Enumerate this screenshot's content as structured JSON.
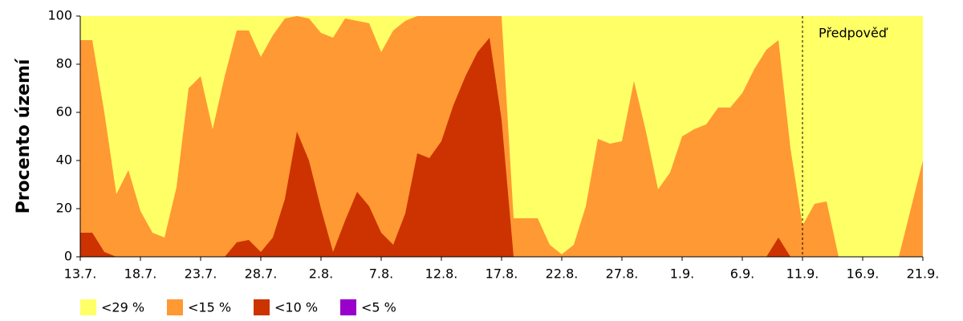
{
  "chart_data": {
    "type": "area",
    "y_label": "Procento území",
    "categories": [
      "13.7.",
      null,
      null,
      null,
      null,
      "18.7.",
      null,
      null,
      null,
      null,
      "23.7.",
      null,
      null,
      null,
      null,
      "28.7.",
      null,
      null,
      null,
      null,
      "2.8.",
      null,
      null,
      null,
      null,
      "7.8.",
      null,
      null,
      null,
      null,
      "12.8.",
      null,
      null,
      null,
      null,
      "17.8.",
      null,
      null,
      null,
      null,
      "22.8.",
      null,
      null,
      null,
      null,
      "27.8.",
      null,
      null,
      null,
      null,
      "1.9.",
      null,
      null,
      null,
      null,
      "6.9.",
      null,
      null,
      null,
      null,
      "11.9.",
      null,
      null,
      null,
      null,
      "16.9.",
      null,
      null,
      null,
      null,
      "21.9."
    ],
    "series": [
      {
        "name": "<29 %",
        "color": "#ffff66",
        "values": [
          100,
          100,
          100,
          100,
          100,
          100,
          100,
          100,
          100,
          100,
          100,
          100,
          100,
          100,
          100,
          100,
          100,
          100,
          100,
          100,
          100,
          100,
          100,
          100,
          100,
          100,
          100,
          100,
          100,
          100,
          100,
          100,
          100,
          100,
          100,
          100,
          100,
          100,
          100,
          100,
          100,
          100,
          100,
          100,
          100,
          100,
          100,
          100,
          100,
          100,
          100,
          100,
          100,
          100,
          100,
          100,
          100,
          100,
          100,
          100,
          100,
          100,
          100,
          100,
          100,
          100,
          100,
          100,
          100,
          100,
          100
        ]
      },
      {
        "name": "<15 %",
        "color": "#ff9933",
        "values": [
          90,
          90,
          60,
          26,
          36,
          19,
          10,
          8,
          29,
          70,
          75,
          53,
          75,
          94,
          94,
          83,
          92,
          99,
          100,
          99,
          93,
          91,
          99,
          98,
          97,
          85,
          94,
          98,
          100,
          100,
          100,
          100,
          100,
          100,
          100,
          100,
          16,
          16,
          16,
          5,
          1,
          5,
          21,
          49,
          47,
          48,
          73,
          52,
          28,
          35,
          50,
          53,
          55,
          62,
          62,
          68,
          78,
          86,
          90,
          45,
          13,
          22,
          23,
          0,
          0,
          0,
          0,
          0,
          0,
          20,
          40
        ]
      },
      {
        "name": "<10 %",
        "color": "#cc3300",
        "values": [
          10,
          10,
          2,
          0,
          0,
          0,
          0,
          0,
          0,
          0,
          0,
          0,
          0,
          6,
          7,
          2,
          8,
          24,
          52,
          40,
          20,
          2,
          15,
          27,
          21,
          10,
          5,
          18,
          43,
          41,
          48,
          63,
          75,
          85,
          91,
          57,
          0,
          0,
          0,
          0,
          0,
          0,
          0,
          0,
          0,
          0,
          0,
          0,
          0,
          0,
          0,
          0,
          0,
          0,
          0,
          0,
          0,
          0,
          8,
          0,
          0,
          0,
          0,
          0,
          0,
          0,
          0,
          0,
          0,
          0,
          0
        ]
      },
      {
        "name": "<5 %",
        "color": "#9900cc",
        "values": [
          0,
          0,
          0,
          0,
          0,
          0,
          0,
          0,
          0,
          0,
          0,
          0,
          0,
          0,
          0,
          0,
          0,
          0,
          0,
          0,
          0,
          0,
          0,
          0,
          0,
          0,
          0,
          0,
          0,
          0,
          0,
          0,
          0,
          0,
          0,
          0,
          0,
          0,
          0,
          0,
          0,
          0,
          0,
          0,
          0,
          0,
          0,
          0,
          0,
          0,
          0,
          0,
          0,
          0,
          0,
          0,
          0,
          0,
          0,
          0,
          0,
          0,
          0,
          0,
          0,
          0,
          0,
          0,
          0,
          0,
          0
        ]
      }
    ],
    "ylim": [
      0,
      100
    ],
    "yticks": [
      0,
      20,
      40,
      60,
      80,
      100
    ],
    "annotations": [
      {
        "text": "Předpověď",
        "x": "11.9."
      }
    ]
  }
}
